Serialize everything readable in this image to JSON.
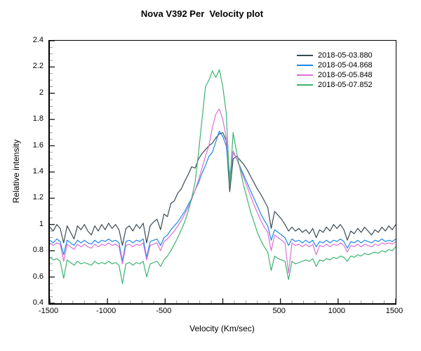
{
  "chart_data": {
    "type": "line",
    "title": "Nova V392 Per  Velocity plot",
    "xlabel": "Velocity (Km/sec)",
    "ylabel": "Relative intensity",
    "xlim": [
      -1500,
      1500
    ],
    "ylim": [
      0.4,
      2.4
    ],
    "grid": false,
    "legend_position": "top-right",
    "x_major_step": 500,
    "x_minor_step": 100,
    "y_major_step": 0.2,
    "y_minor_step": 0.05,
    "x_ticks": [
      {
        "v": -1500,
        "label": "-1500"
      },
      {
        "v": -1000,
        "label": "-1000"
      },
      {
        "v": -500,
        "label": "-500"
      },
      {
        "v": 500,
        "label": "500"
      },
      {
        "v": 1000,
        "label": "1000"
      },
      {
        "v": 1500,
        "label": "1500"
      }
    ],
    "y_ticks": [
      {
        "v": 2.4,
        "label": "2.4"
      },
      {
        "v": 2.2,
        "label": "2.2"
      },
      {
        "v": 2.0,
        "label": "2"
      },
      {
        "v": 1.8,
        "label": "1.8"
      },
      {
        "v": 1.6,
        "label": "1.6"
      },
      {
        "v": 1.4,
        "label": "1.4"
      },
      {
        "v": 1.2,
        "label": "1.2"
      },
      {
        "v": 1.0,
        "label": "1"
      },
      {
        "v": 0.8,
        "label": "0.8"
      },
      {
        "v": 0.6,
        "label": "0.6"
      },
      {
        "v": 0.4,
        "label": "0.4"
      }
    ],
    "absorption_dip_velocities": [
      -1380,
      -870,
      -660,
      60,
      420,
      570,
      810,
      1080
    ],
    "x": [
      -1500,
      -1470,
      -1440,
      -1410,
      -1380,
      -1350,
      -1320,
      -1290,
      -1260,
      -1230,
      -1200,
      -1170,
      -1140,
      -1110,
      -1080,
      -1050,
      -1020,
      -990,
      -960,
      -930,
      -900,
      -870,
      -840,
      -810,
      -780,
      -750,
      -720,
      -690,
      -660,
      -630,
      -600,
      -570,
      -540,
      -510,
      -480,
      -450,
      -420,
      -390,
      -360,
      -330,
      -300,
      -270,
      -240,
      -210,
      -180,
      -150,
      -120,
      -90,
      -60,
      -30,
      0,
      30,
      60,
      90,
      120,
      150,
      180,
      210,
      240,
      270,
      300,
      330,
      360,
      390,
      420,
      450,
      480,
      510,
      540,
      570,
      600,
      630,
      660,
      690,
      720,
      750,
      780,
      810,
      840,
      870,
      900,
      930,
      960,
      990,
      1020,
      1050,
      1080,
      1110,
      1140,
      1170,
      1200,
      1230,
      1260,
      1290,
      1320,
      1350,
      1380,
      1410,
      1440,
      1470,
      1500
    ],
    "series": [
      {
        "name": "2018-05-03.880",
        "color": "#3a4a52",
        "values": [
          0.98,
          0.95,
          1.0,
          0.97,
          0.86,
          0.99,
          0.94,
          0.89,
          0.99,
          0.96,
          1.0,
          0.95,
          0.92,
          0.99,
          0.95,
          1.0,
          0.96,
          1.01,
          0.97,
          1.0,
          0.96,
          0.84,
          0.97,
          0.99,
          0.95,
          1.0,
          0.97,
          1.01,
          0.86,
          0.99,
          1.02,
          1.04,
          0.96,
          1.08,
          1.06,
          1.16,
          1.18,
          1.24,
          1.27,
          1.33,
          1.38,
          1.44,
          1.43,
          1.5,
          1.54,
          1.57,
          1.6,
          1.62,
          1.66,
          1.69,
          1.7,
          1.64,
          1.25,
          1.5,
          1.52,
          1.49,
          1.46,
          1.42,
          1.37,
          1.32,
          1.27,
          1.23,
          1.18,
          1.13,
          0.97,
          1.1,
          1.07,
          1.04,
          1.0,
          0.95,
          0.98,
          0.95,
          0.97,
          0.94,
          0.96,
          0.93,
          0.97,
          0.9,
          0.96,
          0.94,
          0.98,
          0.95,
          1.0,
          0.97,
          1.0,
          0.96,
          0.88,
          0.95,
          0.93,
          0.97,
          0.94,
          0.98,
          0.95,
          0.92,
          0.96,
          0.94,
          0.98,
          0.95,
          0.99,
          0.96,
          1.0
        ]
      },
      {
        "name": "2018-05-04.868",
        "color": "#1e88e5",
        "values": [
          0.88,
          0.86,
          0.89,
          0.87,
          0.77,
          0.88,
          0.86,
          0.84,
          0.88,
          0.86,
          0.88,
          0.86,
          0.85,
          0.88,
          0.86,
          0.88,
          0.87,
          0.89,
          0.87,
          0.88,
          0.86,
          0.72,
          0.87,
          0.88,
          0.86,
          0.88,
          0.87,
          0.89,
          0.75,
          0.87,
          0.88,
          0.89,
          0.84,
          0.9,
          0.92,
          0.96,
          0.99,
          1.02,
          1.06,
          1.1,
          1.15,
          1.2,
          1.26,
          1.32,
          1.39,
          1.45,
          1.52,
          1.55,
          1.63,
          1.71,
          1.67,
          1.6,
          1.34,
          1.55,
          1.5,
          1.44,
          1.38,
          1.32,
          1.26,
          1.2,
          1.14,
          1.08,
          1.03,
          0.99,
          0.88,
          0.96,
          0.94,
          0.92,
          0.9,
          0.84,
          0.89,
          0.87,
          0.88,
          0.86,
          0.88,
          0.86,
          0.88,
          0.83,
          0.87,
          0.86,
          0.88,
          0.86,
          0.88,
          0.87,
          0.89,
          0.87,
          0.82,
          0.87,
          0.86,
          0.88,
          0.86,
          0.88,
          0.87,
          0.86,
          0.88,
          0.87,
          0.89,
          0.87,
          0.88,
          0.87,
          0.89
        ]
      },
      {
        "name": "2018-05-05.848",
        "color": "#da70d6",
        "values": [
          0.86,
          0.84,
          0.86,
          0.85,
          0.72,
          0.85,
          0.83,
          0.81,
          0.85,
          0.83,
          0.85,
          0.83,
          0.82,
          0.85,
          0.83,
          0.85,
          0.84,
          0.86,
          0.84,
          0.85,
          0.83,
          0.7,
          0.84,
          0.85,
          0.83,
          0.85,
          0.84,
          0.86,
          0.73,
          0.84,
          0.85,
          0.86,
          0.8,
          0.87,
          0.89,
          0.92,
          0.95,
          0.99,
          1.03,
          1.08,
          1.13,
          1.19,
          1.26,
          1.34,
          1.43,
          1.52,
          1.6,
          1.74,
          1.84,
          1.88,
          1.8,
          1.66,
          1.37,
          1.56,
          1.5,
          1.43,
          1.36,
          1.29,
          1.22,
          1.15,
          1.09,
          1.03,
          0.98,
          0.94,
          0.8,
          0.92,
          0.9,
          0.88,
          0.86,
          0.63,
          0.86,
          0.84,
          0.85,
          0.83,
          0.85,
          0.83,
          0.85,
          0.77,
          0.84,
          0.83,
          0.85,
          0.83,
          0.85,
          0.84,
          0.86,
          0.84,
          0.79,
          0.84,
          0.83,
          0.85,
          0.83,
          0.85,
          0.84,
          0.83,
          0.85,
          0.84,
          0.86,
          0.85,
          0.86,
          0.85,
          0.87
        ]
      },
      {
        "name": "2018-05-07.852",
        "color": "#3cb371",
        "values": [
          0.75,
          0.73,
          0.74,
          0.72,
          0.59,
          0.73,
          0.71,
          0.69,
          0.72,
          0.7,
          0.71,
          0.7,
          0.69,
          0.72,
          0.7,
          0.71,
          0.7,
          0.72,
          0.7,
          0.71,
          0.69,
          0.55,
          0.7,
          0.71,
          0.69,
          0.71,
          0.7,
          0.72,
          0.6,
          0.7,
          0.71,
          0.72,
          0.68,
          0.73,
          0.76,
          0.8,
          0.85,
          0.9,
          0.96,
          1.02,
          1.1,
          1.2,
          1.32,
          1.55,
          1.8,
          2.05,
          2.1,
          2.17,
          2.12,
          2.18,
          2.05,
          1.85,
          1.3,
          1.7,
          1.55,
          1.42,
          1.3,
          1.2,
          1.1,
          1.02,
          0.94,
          0.88,
          0.83,
          0.79,
          0.65,
          0.76,
          0.74,
          0.73,
          0.72,
          0.58,
          0.72,
          0.7,
          0.71,
          0.72,
          0.73,
          0.72,
          0.74,
          0.68,
          0.73,
          0.72,
          0.74,
          0.73,
          0.75,
          0.74,
          0.76,
          0.75,
          0.72,
          0.76,
          0.75,
          0.77,
          0.76,
          0.78,
          0.77,
          0.78,
          0.79,
          0.78,
          0.8,
          0.79,
          0.81,
          0.8,
          0.83
        ]
      }
    ]
  }
}
